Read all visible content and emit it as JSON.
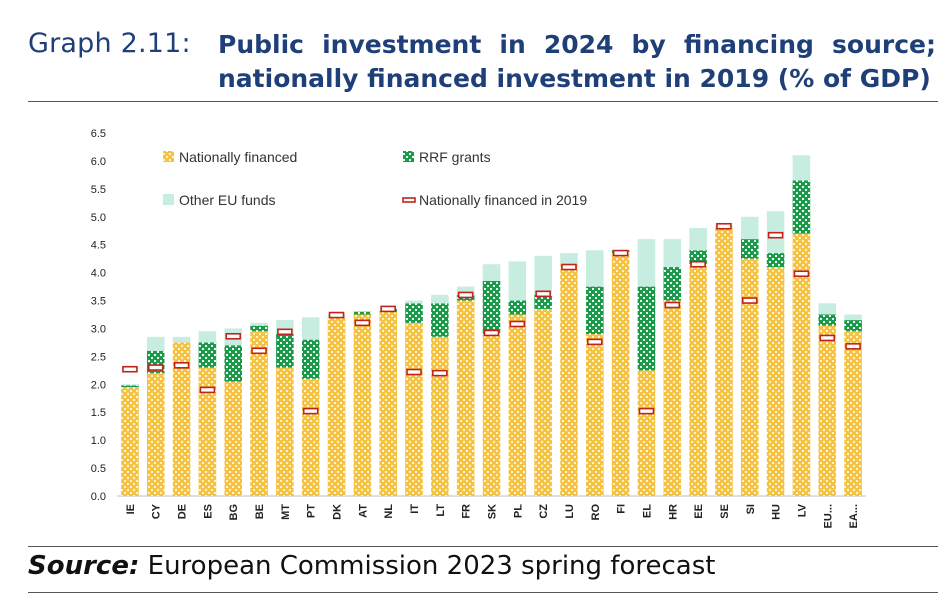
{
  "header": {
    "graph_label": "Graph 2.11:",
    "title": "Public investment in 2024 by financing source; nationally financed investment in 2019 (% of GDP)"
  },
  "source": {
    "label": "Source:",
    "text": "European Commission 2023 spring forecast"
  },
  "colors": {
    "nationally_financed": "#f5c242",
    "rrf_grants": "#1a9a4a",
    "other_eu_funds": "#c7ede0",
    "nationally_financed_2019": "#c0231b"
  },
  "chart_data": {
    "type": "bar",
    "stacked": true,
    "title": "",
    "xlabel": "",
    "ylabel": "",
    "ylim": [
      0,
      6.5
    ],
    "yticks": [
      "0.0",
      "0.5",
      "1.0",
      "1.5",
      "2.0",
      "2.5",
      "3.0",
      "3.5",
      "4.0",
      "4.5",
      "5.0",
      "5.5",
      "6.0",
      "6.5"
    ],
    "grid": false,
    "legend_position": "top-left",
    "categories": [
      "IE",
      "CY",
      "DE",
      "ES",
      "BG",
      "BE",
      "MT",
      "PT",
      "DK",
      "AT",
      "NL",
      "IT",
      "LT",
      "FR",
      "SK",
      "PL",
      "CZ",
      "LU",
      "RO",
      "FI",
      "EL",
      "HR",
      "EE",
      "SE",
      "SI",
      "HU",
      "LV",
      "EU...",
      "EA..."
    ],
    "series": [
      {
        "name": "Nationally financed",
        "kind": "bar",
        "values": [
          1.95,
          2.2,
          2.75,
          2.3,
          2.05,
          2.95,
          2.3,
          2.1,
          3.2,
          3.25,
          3.3,
          3.1,
          2.85,
          3.5,
          2.9,
          3.25,
          3.35,
          4.15,
          2.9,
          4.35,
          2.25,
          3.5,
          4.15,
          4.8,
          4.25,
          4.1,
          4.7,
          3.05,
          2.95
        ]
      },
      {
        "name": "RRF grants",
        "kind": "bar",
        "values": [
          0.03,
          0.4,
          0.0,
          0.45,
          0.65,
          0.1,
          0.6,
          0.7,
          0.0,
          0.05,
          0.05,
          0.35,
          0.6,
          0.1,
          0.95,
          0.25,
          0.25,
          0.0,
          0.85,
          0.05,
          1.5,
          0.6,
          0.25,
          0.0,
          0.35,
          0.25,
          0.95,
          0.2,
          0.2
        ]
      },
      {
        "name": "Other EU funds",
        "kind": "bar",
        "values": [
          0.02,
          0.25,
          0.1,
          0.2,
          0.3,
          0.05,
          0.25,
          0.4,
          0.05,
          0.0,
          0.0,
          0.05,
          0.15,
          0.15,
          0.3,
          0.7,
          0.7,
          0.2,
          0.65,
          0.0,
          0.85,
          0.5,
          0.4,
          0.05,
          0.4,
          0.75,
          0.45,
          0.2,
          0.1
        ]
      },
      {
        "name": "Nationally financed in 2019",
        "kind": "marker",
        "values": [
          2.27,
          2.3,
          2.34,
          1.9,
          2.86,
          2.6,
          2.94,
          1.52,
          3.24,
          3.1,
          3.35,
          2.22,
          2.2,
          3.6,
          2.92,
          3.08,
          3.62,
          4.1,
          2.76,
          4.35,
          1.52,
          3.42,
          4.15,
          4.83,
          3.5,
          4.67,
          3.98,
          2.83,
          2.68
        ]
      }
    ]
  }
}
